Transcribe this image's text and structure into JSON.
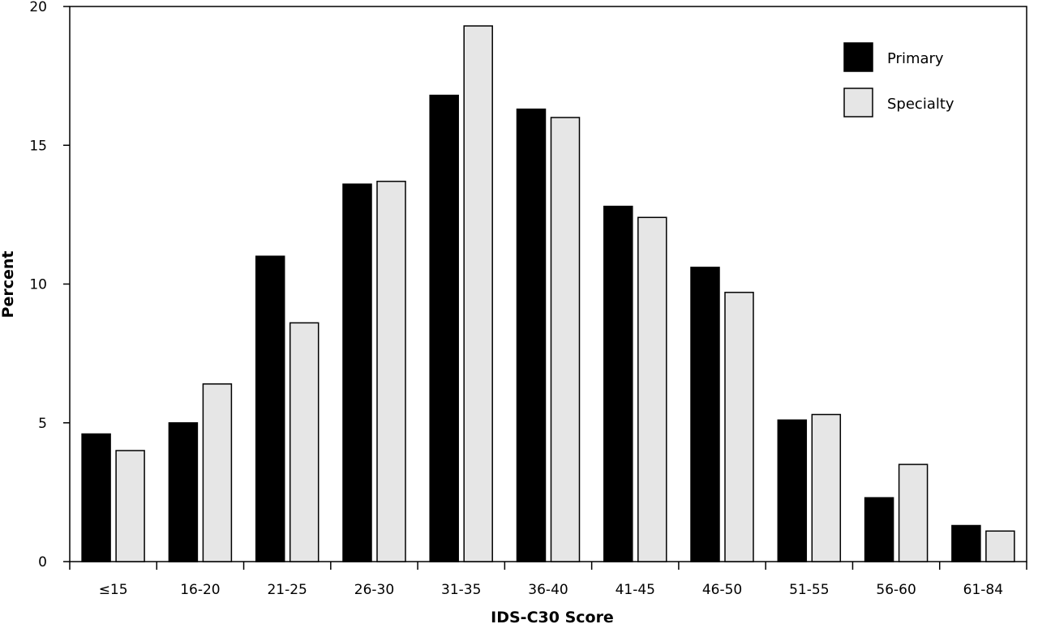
{
  "chart_data": {
    "type": "bar",
    "title": "",
    "xlabel": "IDS-C30 Score",
    "ylabel": "Percent",
    "ylim": [
      0,
      20
    ],
    "yticks": [
      0,
      5,
      10,
      15,
      20
    ],
    "grid": false,
    "legend_position": "top-right",
    "categories": [
      "≤15",
      "16-20",
      "21-25",
      "26-30",
      "31-35",
      "36-40",
      "41-45",
      "46-50",
      "51-55",
      "56-60",
      "61-84"
    ],
    "series": [
      {
        "name": "Primary",
        "color": "#000000",
        "values": [
          4.6,
          5.0,
          11.0,
          13.6,
          16.8,
          16.3,
          12.8,
          10.6,
          5.1,
          2.3,
          1.3
        ]
      },
      {
        "name": "Specialty",
        "color": "#e6e6e6",
        "values": [
          4.0,
          6.4,
          8.6,
          13.7,
          19.3,
          16.0,
          12.4,
          9.7,
          5.3,
          3.5,
          1.1
        ]
      }
    ]
  }
}
